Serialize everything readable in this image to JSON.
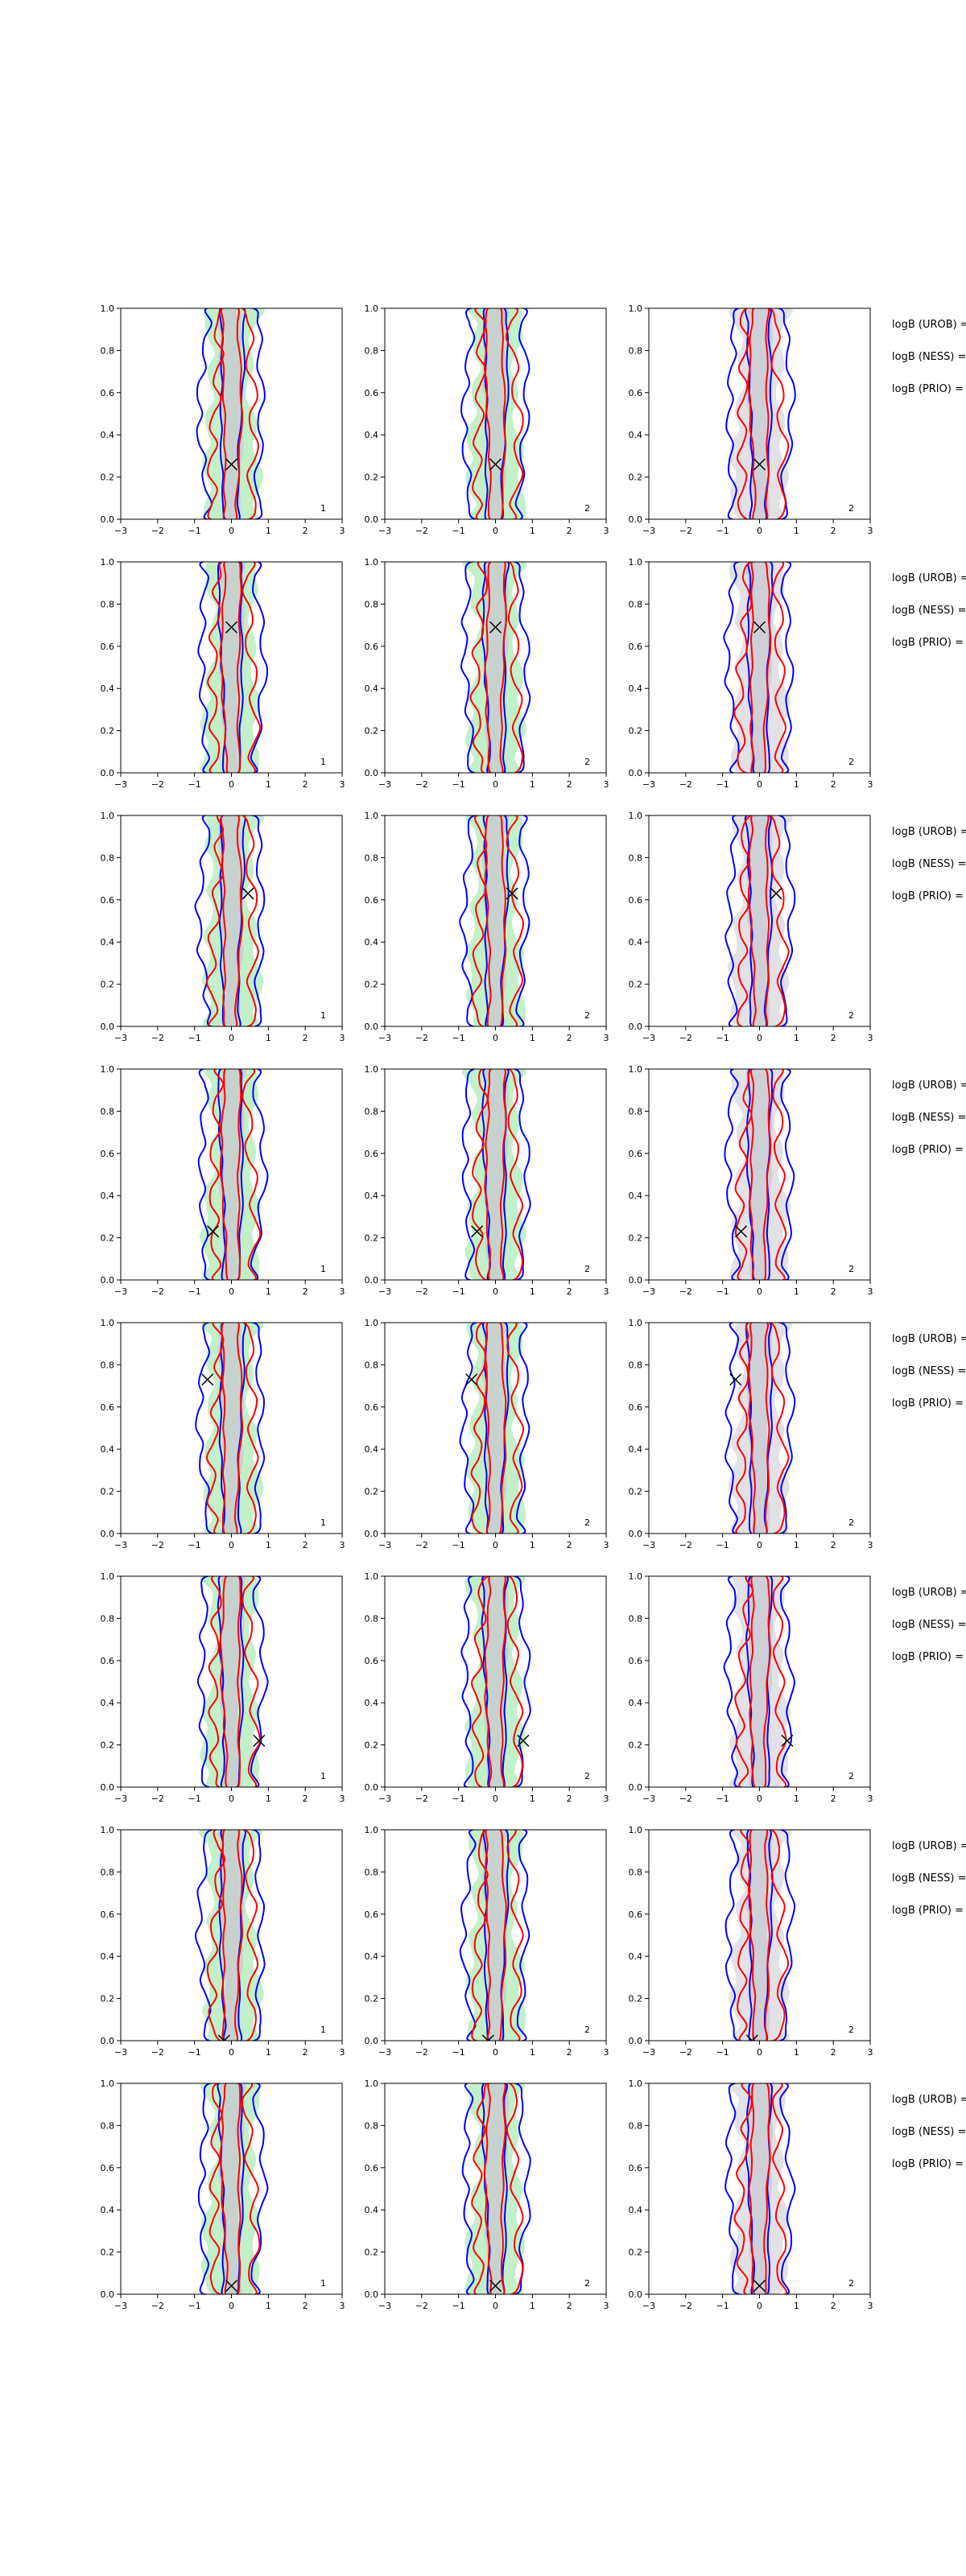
{
  "chart_data": {
    "type": "contour",
    "description_free": true,
    "xlim": [
      -3,
      3
    ],
    "ylim": [
      0,
      1
    ],
    "xticks": [
      "−3",
      "−2",
      "−1",
      "0",
      "1",
      "2",
      "3"
    ],
    "yticks": [
      "0.0",
      "0.2",
      "0.4",
      "0.6",
      "0.8",
      "1.0"
    ],
    "colors": {
      "green_fill": "#8fe39a",
      "grey_fill": "#c8c8d2",
      "blue_line": "#0000ff",
      "red_line": "#ff0000",
      "frame": "#000000"
    },
    "column_labels": [
      "1",
      "2",
      "2"
    ],
    "legend_lines": [
      "logB (UROB) =",
      "logB (NESS) =",
      "logB (PRIO) ="
    ],
    "rows": [
      {
        "marker": [
          0.0,
          0.26
        ]
      },
      {
        "marker": [
          0.0,
          0.69
        ]
      },
      {
        "marker": [
          0.45,
          0.63
        ]
      },
      {
        "marker": [
          -0.5,
          0.23
        ]
      },
      {
        "marker": [
          -0.65,
          0.73
        ]
      },
      {
        "marker": [
          0.75,
          0.22
        ]
      },
      {
        "marker": [
          -0.2,
          0.0
        ]
      },
      {
        "marker": [
          0.0,
          0.04
        ]
      }
    ]
  }
}
